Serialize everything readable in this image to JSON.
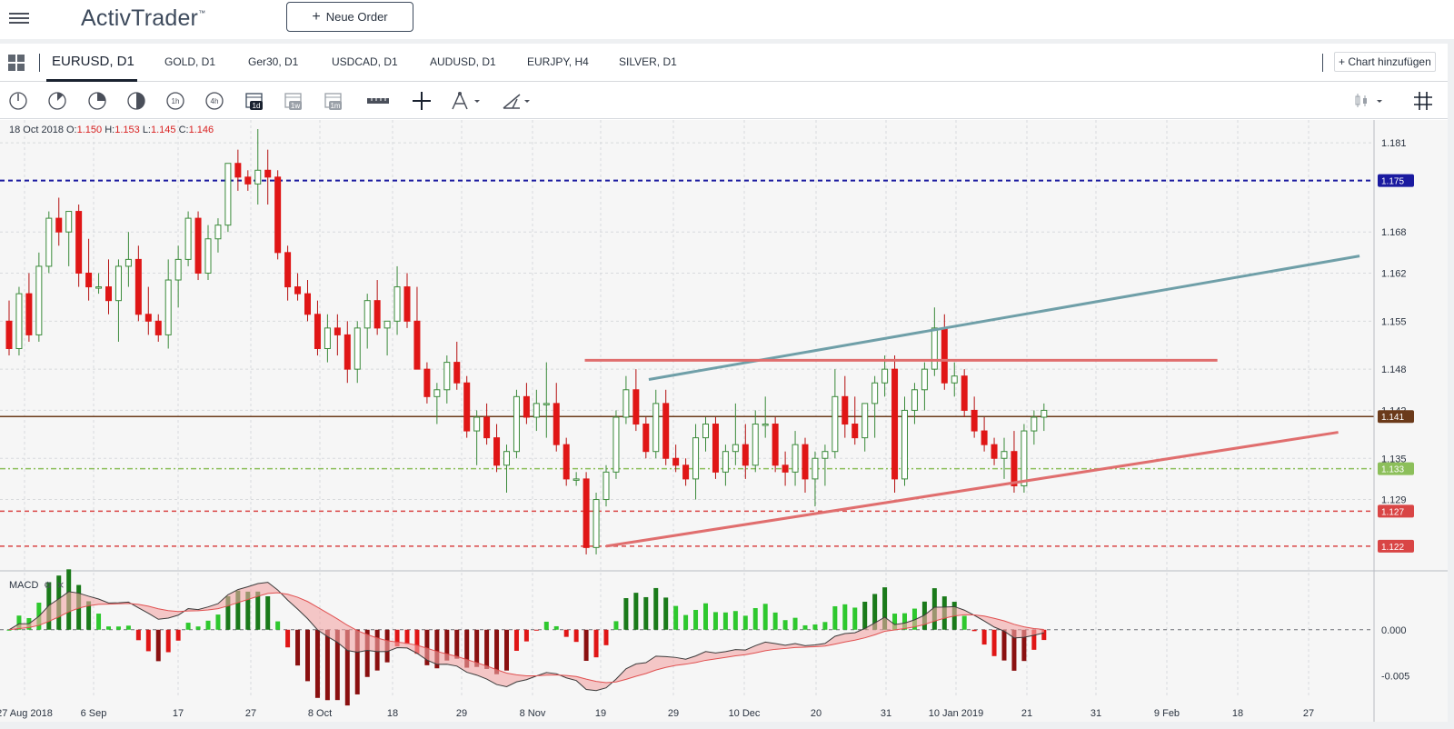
{
  "app": {
    "title": "ActivTrader",
    "trademark": "™",
    "new_order_label": "Neue Order"
  },
  "tabs": [
    {
      "label": "EURUSD, D1",
      "active": true
    },
    {
      "label": "GOLD, D1"
    },
    {
      "label": "Ger30, D1"
    },
    {
      "label": "USDCAD, D1"
    },
    {
      "label": "AUDUSD, D1"
    },
    {
      "label": "EURJPY, H4"
    },
    {
      "label": "SILVER, D1"
    }
  ],
  "add_chart_label": "Chart hinzufügen",
  "toolbar": {
    "timeframes": [
      "1h",
      "4h",
      "1d",
      "1w",
      "1m"
    ],
    "icons": [
      "clock-quarter-icon",
      "clock-eighth-icon",
      "clock-half-icon",
      "half-circle-icon",
      "timeframe-1h-icon",
      "timeframe-4h-icon",
      "calendar-1d-icon",
      "calendar-1w-icon",
      "calendar-1m-icon",
      "ruler-icon",
      "crosshair-icon",
      "drawing-tool-icon",
      "line-tool-icon",
      "candle-type-icon",
      "grid-toggle-icon"
    ]
  },
  "ohlc": {
    "date": "18 Oct 2018",
    "o_label": "O:",
    "o": "1.150",
    "h_label": "H:",
    "h": "1.153",
    "l_label": "L:",
    "l": "1.145",
    "c_label": "C:",
    "c": "1.146"
  },
  "indicator": {
    "name": "MACD",
    "icons": [
      "settings-icon",
      "close-icon"
    ]
  },
  "chart_data": {
    "type": "candlestick",
    "symbol": "EURUSD",
    "timeframe": "D1",
    "x_tick_labels": [
      "27 Aug 2018",
      "6 Sep",
      "17",
      "27",
      "8 Oct",
      "18",
      "29",
      "8 Nov",
      "19",
      "29",
      "10 Dec",
      "20",
      "31",
      "10 Jan 2019",
      "21",
      "31",
      "9 Feb",
      "18",
      "27"
    ],
    "price_axis_ticks": [
      "1.181",
      "1.168",
      "1.162",
      "1.155",
      "1.148",
      "1.142",
      "1.135",
      "1.129"
    ],
    "ylim": [
      1.119,
      1.183
    ],
    "price_lines": [
      {
        "label": "1.175",
        "value": 1.1755,
        "color": "#1a1aa0",
        "style": "dashed"
      },
      {
        "label": "1.141",
        "value": 1.1411,
        "color": "#6b3a1a",
        "style": "solid"
      },
      {
        "label": "1.133",
        "value": 1.1335,
        "color": "#8cbf5a",
        "style": "dashdot"
      },
      {
        "label": "1.127",
        "value": 1.1273,
        "color": "#d94545",
        "style": "dashed"
      },
      {
        "label": "1.122",
        "value": 1.1222,
        "color": "#d94545",
        "style": "dashed"
      }
    ],
    "trendlines": [
      {
        "color": "#6f9fa8",
        "from": [
          "2018-11-18",
          1.1465
        ],
        "to": [
          "2019-02-26",
          1.1645
        ]
      },
      {
        "color": "#e06e6e",
        "from": [
          "2018-11-09",
          1.1493
        ],
        "to": [
          "2019-02-06",
          1.1493
        ]
      },
      {
        "color": "#e06e6e",
        "from": [
          "2018-11-12",
          1.1222
        ],
        "to": [
          "2019-02-23",
          1.1388
        ]
      }
    ],
    "candles": [
      [
        1.155,
        1.158,
        1.15,
        1.151
      ],
      [
        1.151,
        1.16,
        1.15,
        1.159
      ],
      [
        1.159,
        1.162,
        1.152,
        1.153
      ],
      [
        1.153,
        1.165,
        1.152,
        1.163
      ],
      [
        1.163,
        1.171,
        1.162,
        1.17
      ],
      [
        1.17,
        1.173,
        1.166,
        1.168
      ],
      [
        1.168,
        1.171,
        1.163,
        1.171
      ],
      [
        1.171,
        1.172,
        1.16,
        1.162
      ],
      [
        1.162,
        1.167,
        1.158,
        1.16
      ],
      [
        1.16,
        1.162,
        1.159,
        1.16
      ],
      [
        1.16,
        1.164,
        1.156,
        1.158
      ],
      [
        1.158,
        1.164,
        1.152,
        1.163
      ],
      [
        1.163,
        1.168,
        1.16,
        1.164
      ],
      [
        1.164,
        1.166,
        1.155,
        1.156
      ],
      [
        1.156,
        1.16,
        1.153,
        1.155
      ],
      [
        1.155,
        1.156,
        1.152,
        1.153
      ],
      [
        1.153,
        1.164,
        1.151,
        1.161
      ],
      [
        1.161,
        1.166,
        1.157,
        1.164
      ],
      [
        1.164,
        1.171,
        1.163,
        1.17
      ],
      [
        1.17,
        1.171,
        1.161,
        1.162
      ],
      [
        1.162,
        1.169,
        1.161,
        1.167
      ],
      [
        1.167,
        1.17,
        1.165,
        1.169
      ],
      [
        1.169,
        1.178,
        1.168,
        1.178
      ],
      [
        1.178,
        1.18,
        1.174,
        1.176
      ],
      [
        1.176,
        1.177,
        1.174,
        1.175
      ],
      [
        1.175,
        1.183,
        1.172,
        1.177
      ],
      [
        1.177,
        1.18,
        1.172,
        1.176
      ],
      [
        1.176,
        1.177,
        1.164,
        1.165
      ],
      [
        1.165,
        1.166,
        1.158,
        1.16
      ],
      [
        1.16,
        1.162,
        1.158,
        1.159
      ],
      [
        1.159,
        1.161,
        1.155,
        1.156
      ],
      [
        1.156,
        1.158,
        1.15,
        1.151
      ],
      [
        1.151,
        1.156,
        1.149,
        1.154
      ],
      [
        1.154,
        1.156,
        1.15,
        1.153
      ],
      [
        1.153,
        1.155,
        1.146,
        1.148
      ],
      [
        1.148,
        1.155,
        1.146,
        1.154
      ],
      [
        1.154,
        1.159,
        1.151,
        1.158
      ],
      [
        1.158,
        1.161,
        1.153,
        1.154
      ],
      [
        1.154,
        1.155,
        1.15,
        1.155
      ],
      [
        1.155,
        1.163,
        1.153,
        1.16
      ],
      [
        1.16,
        1.162,
        1.154,
        1.155
      ],
      [
        1.155,
        1.16,
        1.148,
        1.148
      ],
      [
        1.148,
        1.149,
        1.143,
        1.144
      ],
      [
        1.144,
        1.146,
        1.14,
        1.145
      ],
      [
        1.145,
        1.15,
        1.143,
        1.149
      ],
      [
        1.149,
        1.152,
        1.145,
        1.146
      ],
      [
        1.146,
        1.147,
        1.138,
        1.139
      ],
      [
        1.139,
        1.142,
        1.134,
        1.141
      ],
      [
        1.141,
        1.143,
        1.137,
        1.138
      ],
      [
        1.138,
        1.14,
        1.133,
        1.134
      ],
      [
        1.134,
        1.137,
        1.13,
        1.136
      ],
      [
        1.136,
        1.145,
        1.135,
        1.144
      ],
      [
        1.144,
        1.146,
        1.14,
        1.141
      ],
      [
        1.141,
        1.145,
        1.139,
        1.143
      ],
      [
        1.143,
        1.149,
        1.138,
        1.143
      ],
      [
        1.143,
        1.146,
        1.136,
        1.137
      ],
      [
        1.137,
        1.138,
        1.131,
        1.132
      ],
      [
        1.132,
        1.133,
        1.131,
        1.132
      ],
      [
        1.132,
        1.133,
        1.121,
        1.122
      ],
      [
        1.122,
        1.13,
        1.121,
        1.129
      ],
      [
        1.129,
        1.134,
        1.128,
        1.133
      ],
      [
        1.133,
        1.142,
        1.132,
        1.141
      ],
      [
        1.141,
        1.147,
        1.14,
        1.145
      ],
      [
        1.145,
        1.148,
        1.139,
        1.14
      ],
      [
        1.14,
        1.141,
        1.135,
        1.136
      ],
      [
        1.136,
        1.145,
        1.135,
        1.143
      ],
      [
        1.143,
        1.145,
        1.134,
        1.135
      ],
      [
        1.135,
        1.137,
        1.133,
        1.134
      ],
      [
        1.134,
        1.135,
        1.131,
        1.132
      ],
      [
        1.132,
        1.14,
        1.129,
        1.138
      ],
      [
        1.138,
        1.141,
        1.136,
        1.14
      ],
      [
        1.14,
        1.141,
        1.132,
        1.133
      ],
      [
        1.133,
        1.137,
        1.131,
        1.136
      ],
      [
        1.136,
        1.143,
        1.134,
        1.137
      ],
      [
        1.137,
        1.14,
        1.132,
        1.134
      ],
      [
        1.134,
        1.142,
        1.133,
        1.14
      ],
      [
        1.14,
        1.144,
        1.138,
        1.14
      ],
      [
        1.14,
        1.141,
        1.133,
        1.134
      ],
      [
        1.134,
        1.136,
        1.131,
        1.133
      ],
      [
        1.133,
        1.139,
        1.131,
        1.137
      ],
      [
        1.137,
        1.138,
        1.13,
        1.132
      ],
      [
        1.132,
        1.136,
        1.128,
        1.135
      ],
      [
        1.135,
        1.137,
        1.131,
        1.136
      ],
      [
        1.136,
        1.148,
        1.135,
        1.144
      ],
      [
        1.144,
        1.147,
        1.138,
        1.14
      ],
      [
        1.14,
        1.144,
        1.137,
        1.138
      ],
      [
        1.138,
        1.143,
        1.136,
        1.143
      ],
      [
        1.143,
        1.147,
        1.138,
        1.146
      ],
      [
        1.146,
        1.15,
        1.144,
        1.148
      ],
      [
        1.148,
        1.15,
        1.13,
        1.132
      ],
      [
        1.132,
        1.144,
        1.131,
        1.142
      ],
      [
        1.142,
        1.146,
        1.14,
        1.145
      ],
      [
        1.145,
        1.149,
        1.142,
        1.148
      ],
      [
        1.148,
        1.157,
        1.147,
        1.154
      ],
      [
        1.154,
        1.156,
        1.145,
        1.146
      ],
      [
        1.146,
        1.149,
        1.144,
        1.147
      ],
      [
        1.147,
        1.148,
        1.141,
        1.142
      ],
      [
        1.142,
        1.144,
        1.138,
        1.139
      ],
      [
        1.139,
        1.141,
        1.136,
        1.137
      ],
      [
        1.137,
        1.138,
        1.134,
        1.135
      ],
      [
        1.135,
        1.138,
        1.132,
        1.136
      ],
      [
        1.136,
        1.139,
        1.13,
        1.131
      ],
      [
        1.131,
        1.14,
        1.13,
        1.139
      ],
      [
        1.139,
        1.142,
        1.137,
        1.141
      ],
      [
        1.141,
        1.143,
        1.139,
        1.142
      ]
    ],
    "macd_axis_ticks": [
      "0.000",
      "-0.005"
    ],
    "macd_ylim": [
      -0.0078,
      0.005
    ]
  }
}
